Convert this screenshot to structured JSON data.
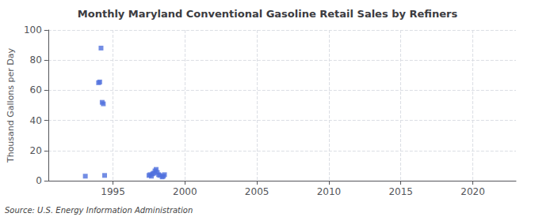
{
  "chart_data": {
    "type": "scatter",
    "title": "Monthly Maryland Conventional Gasoline Retail Sales by Refiners",
    "ylabel": "Thousand Gallons per Day",
    "annotations": [
      "Source: U.S. Energy Information Administration"
    ],
    "marker": "square",
    "x": [
      1993.08,
      1994.0,
      1994.08,
      1994.17,
      1994.25,
      1994.33,
      1994.42,
      1997.5,
      1997.58,
      1997.67,
      1997.75,
      1997.83,
      1997.92,
      1998.0,
      1998.08,
      1998.17,
      1998.25,
      1998.42,
      1998.5,
      1998.58
    ],
    "values": [
      3.0,
      65.0,
      65.5,
      88.0,
      52.0,
      51.0,
      3.5,
      3.5,
      4.0,
      3.0,
      4.5,
      5.0,
      6.5,
      7.5,
      5.5,
      4.0,
      3.5,
      2.5,
      3.0,
      4.0
    ],
    "xlim": [
      1990.5,
      2023
    ],
    "ylim": [
      0,
      100
    ],
    "xticks": [
      1995,
      2000,
      2005,
      2010,
      2015,
      2020
    ],
    "yticks": [
      0,
      20,
      40,
      60,
      80,
      100
    ],
    "grid": true
  }
}
